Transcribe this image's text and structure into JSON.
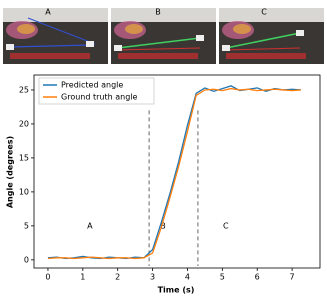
{
  "images": {
    "labels": [
      "A",
      "B",
      "C"
    ]
  },
  "chart_data": {
    "type": "line",
    "x_label": "Time (s)",
    "y_label": "Angle (degrees)",
    "x": [
      0,
      0.25,
      0.5,
      0.75,
      1,
      1.25,
      1.5,
      1.75,
      2,
      2.25,
      2.5,
      2.75,
      3,
      3.25,
      3.5,
      3.75,
      4,
      4.25,
      4.5,
      4.75,
      5,
      5.25,
      5.5,
      5.75,
      6,
      6.25,
      6.5,
      6.75,
      7,
      7.25
    ],
    "series": [
      {
        "name": "Predicted angle",
        "color": "#1f77b4",
        "values": [
          0.3,
          0.4,
          0.2,
          0.3,
          0.5,
          0.3,
          0.2,
          0.4,
          0.3,
          0.2,
          0.4,
          0.3,
          1.5,
          5.5,
          9.8,
          14.5,
          19.8,
          24.5,
          25.3,
          24.8,
          25.2,
          25.6,
          24.9,
          25.1,
          25.3,
          24.8,
          25.2,
          25,
          25.1,
          25
        ]
      },
      {
        "name": "Ground truth angle",
        "color": "#ff7f0e",
        "values": [
          0.2,
          0.3,
          0.3,
          0.2,
          0.3,
          0.4,
          0.3,
          0.2,
          0.3,
          0.3,
          0.2,
          0.3,
          1.0,
          4.8,
          9.2,
          13.8,
          18.9,
          24.2,
          25,
          25.1,
          24.9,
          25.2,
          25,
          25.1,
          24.9,
          25,
          25.1,
          25,
          24.9,
          25
        ]
      }
    ],
    "xlim": [
      -0.4,
      7.8
    ],
    "ylim": [
      -1.2,
      27.2
    ],
    "xticks": [
      0,
      1,
      2,
      3,
      4,
      5,
      6,
      7
    ],
    "yticks": [
      0,
      5,
      10,
      15,
      20,
      25
    ],
    "vlines": [
      2.9,
      4.3
    ],
    "annotations": [
      {
        "text": "A",
        "x": 1.2,
        "y": 5
      },
      {
        "text": "B",
        "x": 3.3,
        "y": 5
      },
      {
        "text": "C",
        "x": 5.1,
        "y": 5
      }
    ],
    "legend": "upper left"
  }
}
